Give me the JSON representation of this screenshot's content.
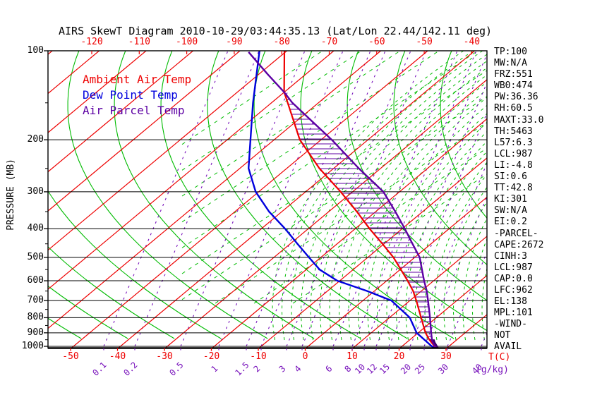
{
  "title": "AIRS SkewT Diagram 2010-10-29/03:44:35.13 (Lat/Lon 22.44/142.11 deg)",
  "legend": [
    {
      "label": "Ambient Air Temp",
      "color": "#ee0000"
    },
    {
      "label": "Dew Point Temp",
      "color": "#0000dd"
    },
    {
      "label": "Air Parcel Temp",
      "color": "#5c00a3"
    }
  ],
  "axes": {
    "pressure_label": "PRESSURE (MB)",
    "pressure_ticks": [
      100,
      200,
      300,
      400,
      500,
      600,
      700,
      800,
      900,
      1000
    ],
    "top_temp_ticks": [
      -120,
      -110,
      -100,
      -90,
      -80,
      -70,
      -60,
      -50,
      -40
    ],
    "bottom_temp_ticks": [
      -50,
      -40,
      -30,
      -20,
      -10,
      0,
      10,
      20,
      30
    ],
    "temp_unit": "T(C)",
    "mixing_ratio_ticks": [
      "0.1",
      "0.2",
      "0.5",
      "1",
      "1.5",
      "2",
      "3",
      "4",
      "6",
      "8",
      "10",
      "12",
      "15",
      "20",
      "25",
      "30",
      "40"
    ],
    "mixing_ratio_unit": "(g/kg)"
  },
  "stats": [
    "TP:100",
    "MW:N/A",
    "FRZ:551",
    "WB0:474",
    "PW:36.36",
    "RH:60.5",
    "MAXT:33.0",
    "TH:5463",
    "L57:6.3",
    "LCL:987",
    "LI:-4.8",
    "SI:0.6",
    "TT:42.8",
    "KI:301",
    "SW:N/A",
    "EI:0.2",
    "-PARCEL-",
    "CAPE:2672",
    "CINH:3",
    "LCL:987",
    "CAP:0.0",
    "LFC:962",
    "EL:138",
    "MPL:101",
    "-WIND-",
    "NOT",
    "AVAIL"
  ],
  "colors": {
    "isotherm_red": "#ee0000",
    "adiabat_green": "#00bb00",
    "dewpoint_blue": "#0000dd",
    "parcel_purple": "#5c00a3",
    "mixing_purple": "#7711bb",
    "pressure_black": "#000000"
  },
  "chart_data": {
    "type": "skewt",
    "title": "AIRS SkewT Diagram 2010-10-29/03:44:35.13 (Lat/Lon 22.44/142.11 deg)",
    "pressure_axis": {
      "label": "PRESSURE (MB)",
      "scale": "log",
      "range": [
        100,
        1012
      ],
      "ticks": [
        100,
        200,
        300,
        400,
        500,
        600,
        700,
        800,
        900,
        1000
      ]
    },
    "temp_axis": {
      "label": "T(C)",
      "bottom_ticks": [
        -50,
        -40,
        -30,
        -20,
        -10,
        0,
        10,
        20,
        30
      ],
      "top_ticks": [
        -120,
        -110,
        -100,
        -90,
        -80,
        -70,
        -60,
        -50,
        -40
      ],
      "skewed": true
    },
    "mixing_ratio_axis": {
      "label": "(g/kg)",
      "ticks": [
        0.1,
        0.2,
        0.5,
        1,
        1.5,
        2,
        3,
        4,
        6,
        8,
        10,
        12,
        15,
        20,
        25,
        30,
        40
      ]
    },
    "legend_position": "top-left-inside",
    "grid": {
      "isotherm_step_c": 10,
      "families": [
        "isobars",
        "isotherms",
        "dry-adiabats",
        "moist-adiabats",
        "mixing-ratio"
      ]
    },
    "series": [
      {
        "name": "Ambient Air Temp",
        "color": "#ee0000",
        "points": [
          {
            "p": 100,
            "t": -80.0
          },
          {
            "p": 138,
            "t": -69.5
          },
          {
            "p": 150,
            "t": -66.0
          },
          {
            "p": 200,
            "t": -54.0
          },
          {
            "p": 250,
            "t": -42.5
          },
          {
            "p": 300,
            "t": -32.0
          },
          {
            "p": 350,
            "t": -23.5
          },
          {
            "p": 400,
            "t": -16.4
          },
          {
            "p": 450,
            "t": -9.8
          },
          {
            "p": 500,
            "t": -4.0
          },
          {
            "p": 550,
            "t": 0.7
          },
          {
            "p": 600,
            "t": 5.0
          },
          {
            "p": 650,
            "t": 8.8
          },
          {
            "p": 700,
            "t": 11.9
          },
          {
            "p": 800,
            "t": 17.3
          },
          {
            "p": 900,
            "t": 22.1
          },
          {
            "p": 950,
            "t": 24.7
          },
          {
            "p": 1000,
            "t": 27.5
          },
          {
            "p": 1012,
            "t": 28.2
          }
        ]
      },
      {
        "name": "Dew Point Temp",
        "color": "#0000dd",
        "points": [
          {
            "p": 100,
            "t": -85.3
          },
          {
            "p": 150,
            "t": -73.4
          },
          {
            "p": 200,
            "t": -64.5
          },
          {
            "p": 250,
            "t": -57.6
          },
          {
            "p": 300,
            "t": -50.1
          },
          {
            "p": 350,
            "t": -42.2
          },
          {
            "p": 400,
            "t": -34.4
          },
          {
            "p": 450,
            "t": -27.9
          },
          {
            "p": 500,
            "t": -22.0
          },
          {
            "p": 550,
            "t": -16.6
          },
          {
            "p": 600,
            "t": -10.0
          },
          {
            "p": 650,
            "t": -1.0
          },
          {
            "p": 700,
            "t": 6.6
          },
          {
            "p": 800,
            "t": 14.9
          },
          {
            "p": 900,
            "t": 20.2
          },
          {
            "p": 1000,
            "t": 26.9
          },
          {
            "p": 1012,
            "t": 27.8
          }
        ]
      },
      {
        "name": "Air Parcel Temp",
        "color": "#5c00a3",
        "points": [
          {
            "p": 101,
            "t": -87.3
          },
          {
            "p": 120,
            "t": -77.6
          },
          {
            "p": 138,
            "t": -69.5
          },
          {
            "p": 150,
            "t": -65.0
          },
          {
            "p": 200,
            "t": -47.2
          },
          {
            "p": 250,
            "t": -34.1
          },
          {
            "p": 300,
            "t": -22.9
          },
          {
            "p": 350,
            "t": -15.3
          },
          {
            "p": 400,
            "t": -8.9
          },
          {
            "p": 450,
            "t": -3.4
          },
          {
            "p": 500,
            "t": 1.6
          },
          {
            "p": 550,
            "t": 5.2
          },
          {
            "p": 600,
            "t": 8.5
          },
          {
            "p": 650,
            "t": 11.7
          },
          {
            "p": 700,
            "t": 14.4
          },
          {
            "p": 800,
            "t": 19.2
          },
          {
            "p": 900,
            "t": 23.3
          },
          {
            "p": 962,
            "t": 25.7
          },
          {
            "p": 1012,
            "t": 28.2
          }
        ]
      }
    ],
    "cape_hatch": {
      "between": [
        "Ambient Air Temp",
        "Air Parcel Temp"
      ],
      "pressure_range": [
        140,
        945
      ]
    },
    "cinh_fill": {
      "pressure_range": [
        945,
        1012
      ]
    }
  }
}
